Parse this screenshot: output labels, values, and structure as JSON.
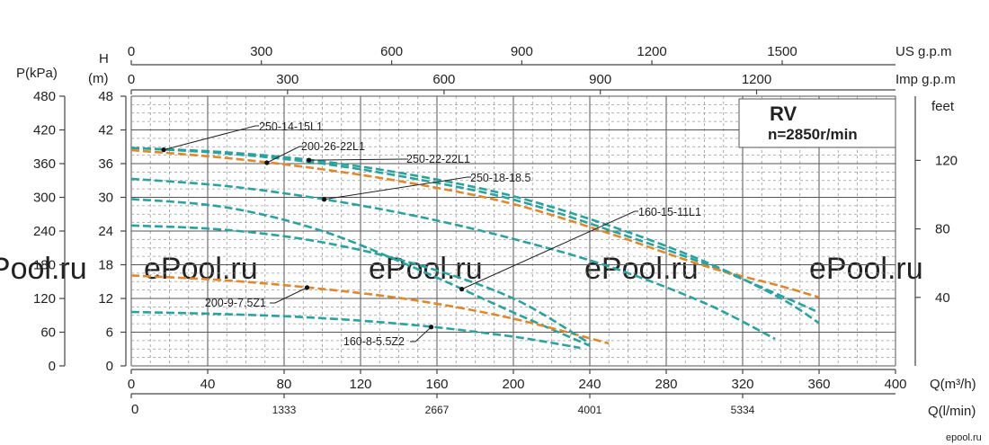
{
  "chart_data": {
    "type": "line",
    "title": "RV",
    "subtitle": "n=2850r/min",
    "grid": true,
    "axes": {
      "bottom_primary": {
        "label": "Q(m³/h)",
        "range": [
          0,
          400
        ],
        "ticks": [
          "0",
          "40",
          "80",
          "120",
          "160",
          "200",
          "240",
          "280",
          "320",
          "360",
          "400"
        ]
      },
      "bottom_secondary": {
        "label": "Q(l/min)",
        "ticks": [
          {
            "value": 0,
            "label": "0"
          },
          {
            "value": 80,
            "label": "1333"
          },
          {
            "value": 160,
            "label": "2667"
          },
          {
            "value": 240,
            "label": "4001"
          },
          {
            "value": 320,
            "label": "5334"
          }
        ]
      },
      "top_us": {
        "label": "US g.p.m",
        "ticks": [
          {
            "value": 0,
            "label": "0"
          },
          {
            "value": 68.1,
            "label": "300"
          },
          {
            "value": 136.3,
            "label": "600"
          },
          {
            "value": 204.4,
            "label": "900"
          },
          {
            "value": 272.5,
            "label": "1200"
          },
          {
            "value": 340.7,
            "label": "1500"
          }
        ]
      },
      "top_imp": {
        "label": "Imp g.p.m",
        "ticks": [
          {
            "value": 0,
            "label": "0"
          },
          {
            "value": 81.8,
            "label": "300"
          },
          {
            "value": 163.7,
            "label": "600"
          },
          {
            "value": 245.5,
            "label": "900"
          },
          {
            "value": 327.3,
            "label": "1200"
          }
        ]
      },
      "left_head": {
        "label": "H",
        "unit": "(m)",
        "range": [
          0,
          48
        ],
        "ticks": [
          "0",
          "6",
          "12",
          "18",
          "24",
          "30",
          "36",
          "42",
          "48"
        ]
      },
      "left_pressure": {
        "label": "P(kPa)",
        "ticks": [
          "0",
          "60",
          "120",
          "180",
          "240",
          "300",
          "360",
          "420",
          "480"
        ]
      },
      "right_feet": {
        "label": "feet",
        "ticks": [
          {
            "value": 12.19,
            "label": "40"
          },
          {
            "value": 24.38,
            "label": "80"
          },
          {
            "value": 36.58,
            "label": "120"
          }
        ]
      }
    },
    "series": [
      {
        "name": "250-14-15L1",
        "color": "#2aa39f",
        "x": [
          0,
          50,
          100,
          150,
          200,
          250,
          300,
          340,
          358
        ],
        "y": [
          38.8,
          37.8,
          36.0,
          33.2,
          29.6,
          24.2,
          18.2,
          12.5,
          9.8
        ]
      },
      {
        "name": "200-26-22L1",
        "color": "#e0882a",
        "x": [
          0,
          50,
          100,
          150,
          200,
          250,
          300,
          340,
          360
        ],
        "y": [
          38.4,
          37.0,
          35.0,
          32.3,
          28.8,
          23.6,
          17.8,
          14.2,
          12.2
        ]
      },
      {
        "name": "250-22-22L1",
        "color": "#2aa39f",
        "x": [
          0,
          50,
          100,
          150,
          200,
          250,
          300,
          340,
          360
        ],
        "y": [
          38.8,
          38.0,
          36.4,
          33.8,
          30.2,
          25.0,
          18.6,
          12.0,
          7.6
        ]
      },
      {
        "name": "250-18-18.5",
        "color": "#2aa39f",
        "x": [
          0,
          50,
          100,
          150,
          200,
          250,
          300,
          337
        ],
        "y": [
          33.3,
          32.0,
          29.7,
          26.6,
          22.6,
          17.7,
          11.2,
          4.8
        ]
      },
      {
        "name": "160-15-11L1",
        "color": "#2aa39f",
        "x": [
          0,
          50,
          100,
          150,
          200,
          240
        ],
        "y": [
          29.7,
          28.2,
          24.0,
          17.2,
          9.5,
          3.6
        ]
      },
      {
        "name": "200-9-7.5Z1",
        "color": "#e0882a",
        "x": [
          0,
          50,
          100,
          150,
          200,
          250
        ],
        "y": [
          16.1,
          15.2,
          13.7,
          11.6,
          8.4,
          4.0
        ]
      },
      {
        "name": "160-8-5.5Z2",
        "color": "#2aa39f",
        "x": [
          0,
          50,
          100,
          150,
          200,
          235
        ],
        "y": [
          9.6,
          9.2,
          8.5,
          7.2,
          5.2,
          3.2
        ]
      },
      {
        "name": "",
        "color": "#2aa39f",
        "x": [
          0,
          50,
          100,
          150,
          200,
          240
        ],
        "y": [
          25.0,
          24.2,
          22.0,
          18.0,
          12.0,
          4.0
        ]
      }
    ],
    "annotations": [
      {
        "text": "250-14-15L1",
        "series": 0
      },
      {
        "text": "200-26-22L1",
        "series": 1
      },
      {
        "text": "250-22-22L1",
        "series": 2
      },
      {
        "text": "250-18-18.5",
        "series": 3
      },
      {
        "text": "160-15-11L1",
        "series": 4
      },
      {
        "text": "200-9-7.5Z1",
        "series": 5
      },
      {
        "text": "160-8-5.5Z2",
        "series": 6
      }
    ],
    "watermark": "ePool.ru"
  },
  "footer_brand": "epool.ru"
}
